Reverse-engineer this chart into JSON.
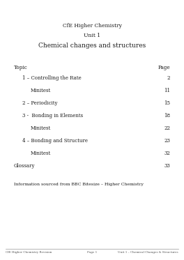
{
  "title_line1": "CfE Higher Chemistry",
  "title_line2": "Unit 1",
  "title_line3": "Chemical changes and structures",
  "header_topic": "Topic",
  "header_page": "Page",
  "toc_entries": [
    {
      "label": "1 – Controlling the Rate",
      "page": "2",
      "indent": 1
    },
    {
      "label": "Minitest",
      "page": "11",
      "indent": 2
    },
    {
      "label": "2 – Periodicity",
      "page": "15",
      "indent": 1
    },
    {
      "label": "3 -  Bonding in Elements",
      "page": "18",
      "indent": 1
    },
    {
      "label": "Minitest",
      "page": "22",
      "indent": 2
    },
    {
      "label": "4 – Bonding and Structure",
      "page": "23",
      "indent": 1
    },
    {
      "label": "Minitest",
      "page": "32",
      "indent": 2
    },
    {
      "label": "Glossary",
      "page": "33",
      "indent": 0
    }
  ],
  "footer_note": "Information sourced from BBC Bitesize – Higher Chemistry",
  "footer_left": "CfE Higher Chemistry Revision",
  "footer_center": "Page 1",
  "footer_right": "Unit 1 – Chemical Changes & Structures",
  "bg_color": "#ffffff",
  "text_color": "#1a1a1a",
  "footer_color": "#555555",
  "font_family": "DejaVu Serif",
  "title_fontsize": 5.5,
  "title_large_fontsize": 6.5,
  "header_fontsize": 5.2,
  "toc_fontsize": 5.0,
  "note_fontsize": 4.5,
  "footer_fontsize": 3.0
}
